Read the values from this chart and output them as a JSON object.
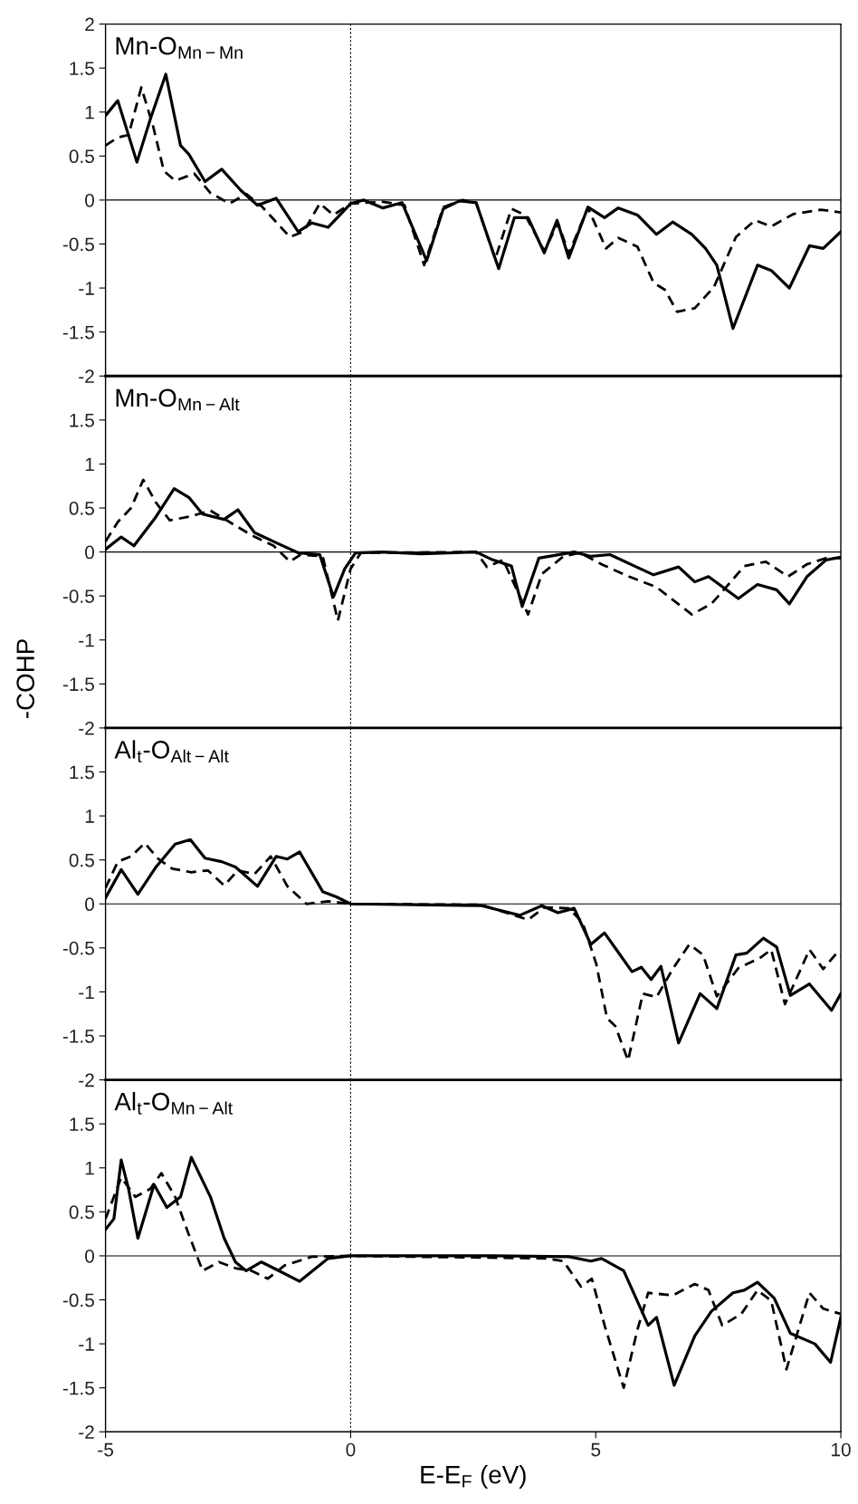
{
  "chart_data": [
    {
      "type": "line",
      "annotations": [
        "Mn-O$_{Mn−Mn}$"
      ],
      "xlim": [
        -5,
        10
      ],
      "ylim": [
        -2,
        2
      ],
      "yticks": [
        -2,
        -1.5,
        -1,
        -0.5,
        0,
        0.5,
        1,
        1.5,
        2
      ],
      "tick_labels": "y",
      "grid": false,
      "legend": false,
      "ref_lines": [
        {
          "axis": "x",
          "value": 0,
          "color": "#000000",
          "line_style": "dotted"
        },
        {
          "axis": "y",
          "value": 0,
          "color": "#000000",
          "line_style": "solid"
        }
      ],
      "series": [
        {
          "color": "#000000",
          "line_style": "solid",
          "x": [
            -5,
            -4.75,
            -4.36,
            -4.08,
            -3.77,
            -3.47,
            -3.3,
            -2.97,
            -2.63,
            -2.24,
            -1.9,
            -1.52,
            -1.07,
            -0.79,
            -0.46,
            0,
            0.27,
            0.66,
            1.05,
            1.55,
            1.89,
            2.22,
            2.56,
            3.02,
            3.34,
            3.62,
            3.95,
            4.21,
            4.45,
            4.84,
            5.18,
            5.46,
            5.85,
            6.24,
            6.57,
            6.96,
            7.24,
            7.47,
            7.8,
            8.3,
            8.58,
            8.95,
            9.36,
            9.64,
            10
          ],
          "values": [
            0.96,
            1.13,
            0.43,
            0.93,
            1.43,
            0.62,
            0.52,
            0.21,
            0.35,
            0.11,
            -0.06,
            0.02,
            -0.36,
            -0.26,
            -0.31,
            -0.04,
            0,
            -0.09,
            -0.03,
            -0.69,
            -0.1,
            -0.01,
            -0.03,
            -0.78,
            -0.2,
            -0.2,
            -0.6,
            -0.23,
            -0.66,
            -0.08,
            -0.2,
            -0.09,
            -0.17,
            -0.39,
            -0.25,
            -0.39,
            -0.55,
            -0.74,
            -1.46,
            -0.74,
            -0.8,
            -1.0,
            -0.52,
            -0.55,
            -0.36
          ]
        },
        {
          "color": "#000000",
          "line_style": "dashed",
          "x": [
            -5,
            -4.75,
            -4.53,
            -4.27,
            -4.03,
            -3.81,
            -3.58,
            -3.19,
            -2.86,
            -2.47,
            -2.13,
            -1.8,
            -1.24,
            -0.96,
            -0.63,
            -0.35,
            0,
            0.66,
            1.1,
            1.5,
            1.89,
            2.28,
            2.56,
            2.95,
            3.28,
            3.56,
            3.95,
            4.23,
            4.45,
            4.84,
            5.01,
            5.21,
            5.46,
            5.85,
            6.18,
            6.41,
            6.66,
            7.02,
            7.41,
            7.86,
            8.25,
            8.58,
            9.03,
            9.59,
            10
          ],
          "values": [
            0.62,
            0.71,
            0.74,
            1.28,
            0.84,
            0.33,
            0.22,
            0.3,
            0.08,
            -0.04,
            0.07,
            -0.08,
            -0.42,
            -0.36,
            -0.04,
            -0.17,
            -0.04,
            -0.02,
            -0.06,
            -0.74,
            -0.08,
            0,
            -0.03,
            -0.67,
            -0.1,
            -0.17,
            -0.58,
            -0.26,
            -0.61,
            -0.09,
            -0.3,
            -0.55,
            -0.43,
            -0.53,
            -0.94,
            -1.02,
            -1.27,
            -1.23,
            -0.99,
            -0.42,
            -0.23,
            -0.3,
            -0.16,
            -0.11,
            -0.14
          ]
        }
      ]
    },
    {
      "type": "line",
      "ylabel": "-COHP",
      "annotations": [
        "Mn-O$_{Mn−Alt}$"
      ],
      "xlim": [
        -5,
        10
      ],
      "ylim": [
        -2,
        2
      ],
      "yticks": [
        -2,
        -1.5,
        -1,
        -0.5,
        0,
        0.5,
        1,
        1.5
      ],
      "tick_labels": "y",
      "grid": false,
      "legend": false,
      "ref_lines": [
        {
          "axis": "x",
          "value": 0,
          "color": "#000000",
          "line_style": "dotted"
        },
        {
          "axis": "y",
          "value": 0,
          "color": "#000000",
          "line_style": "solid"
        }
      ],
      "series": [
        {
          "color": "#000000",
          "line_style": "solid",
          "x": [
            -5,
            -4.68,
            -4.42,
            -3.97,
            -3.6,
            -3.3,
            -3.02,
            -2.58,
            -2.3,
            -1.96,
            -1.46,
            -1.07,
            -0.63,
            -0.35,
            -0.12,
            0.1,
            0.66,
            1.44,
            2.56,
            2.9,
            3.28,
            3.5,
            3.84,
            4.56,
            4.9,
            5.29,
            5.79,
            6.18,
            6.69,
            7.02,
            7.3,
            7.91,
            8.3,
            8.69,
            8.95,
            9.31,
            9.7,
            10
          ],
          "values": [
            0.03,
            0.17,
            0.07,
            0.4,
            0.72,
            0.62,
            0.43,
            0.37,
            0.48,
            0.22,
            0.09,
            -0.01,
            -0.03,
            -0.51,
            -0.19,
            -0.01,
            0,
            -0.02,
            0,
            -0.09,
            -0.16,
            -0.62,
            -0.07,
            0,
            -0.05,
            -0.03,
            -0.16,
            -0.26,
            -0.17,
            -0.34,
            -0.28,
            -0.53,
            -0.37,
            -0.43,
            -0.59,
            -0.28,
            -0.09,
            -0.06
          ]
        },
        {
          "color": "#000000",
          "line_style": "dashed",
          "x": [
            -5,
            -4.75,
            -4.48,
            -4.23,
            -3.97,
            -3.69,
            -3.3,
            -2.86,
            -2.47,
            -2.02,
            -1.57,
            -1.24,
            -1.02,
            -0.57,
            -0.26,
            0,
            0.21,
            2.56,
            2.78,
            3.11,
            3.62,
            3.9,
            4.34,
            4.68,
            5.12,
            5.68,
            6.24,
            6.96,
            7.36,
            7.8,
            8.03,
            8.47,
            8.92,
            9.31,
            9.7,
            10
          ],
          "values": [
            0.12,
            0.34,
            0.5,
            0.82,
            0.56,
            0.36,
            0.4,
            0.47,
            0.34,
            0.19,
            0.07,
            -0.11,
            -0.03,
            -0.05,
            -0.78,
            -0.19,
            -0.01,
            0,
            -0.17,
            -0.09,
            -0.71,
            -0.25,
            -0.05,
            -0.01,
            -0.14,
            -0.28,
            -0.4,
            -0.71,
            -0.59,
            -0.31,
            -0.16,
            -0.11,
            -0.28,
            -0.14,
            -0.07,
            -0.07
          ]
        }
      ]
    },
    {
      "type": "line",
      "annotations": [
        "Al$_{t}$-O$_{Alt−Alt}$"
      ],
      "xlim": [
        -5,
        10
      ],
      "ylim": [
        -2,
        2
      ],
      "yticks": [
        -2,
        -1.5,
        -1,
        -0.5,
        0,
        0.5,
        1,
        1.5
      ],
      "tick_labels": "y",
      "grid": false,
      "legend": false,
      "ref_lines": [
        {
          "axis": "x",
          "value": 0,
          "color": "#000000",
          "line_style": "dotted"
        },
        {
          "axis": "y",
          "value": 0,
          "color": "#000000",
          "line_style": "solid"
        }
      ],
      "series": [
        {
          "color": "#000000",
          "line_style": "solid",
          "x": [
            -5,
            -4.68,
            -4.34,
            -3.97,
            -3.58,
            -3.27,
            -2.97,
            -2.63,
            -2.35,
            -1.9,
            -1.52,
            -1.29,
            -1.04,
            -0.57,
            -0.29,
            0,
            2.67,
            3.45,
            3.9,
            4.23,
            4.56,
            4.9,
            5.18,
            5.46,
            5.74,
            5.93,
            6.13,
            6.33,
            6.69,
            7.13,
            7.47,
            7.86,
            8.08,
            8.42,
            8.69,
            8.97,
            9.36,
            9.81,
            10
          ],
          "values": [
            0.07,
            0.39,
            0.11,
            0.42,
            0.68,
            0.73,
            0.52,
            0.48,
            0.42,
            0.2,
            0.54,
            0.51,
            0.59,
            0.14,
            0.08,
            0,
            -0.02,
            -0.13,
            -0.02,
            -0.1,
            -0.05,
            -0.46,
            -0.33,
            -0.55,
            -0.77,
            -0.72,
            -0.86,
            -0.71,
            -1.58,
            -1.02,
            -1.19,
            -0.58,
            -0.56,
            -0.39,
            -0.49,
            -1.04,
            -0.91,
            -1.21,
            -1.02
          ]
        },
        {
          "color": "#000000",
          "line_style": "dashed",
          "x": [
            -5,
            -4.75,
            -4.48,
            -4.2,
            -3.92,
            -3.64,
            -3.25,
            -2.91,
            -2.58,
            -2.3,
            -1.96,
            -1.63,
            -1.29,
            -0.9,
            -0.46,
            0,
            2.67,
            3.62,
            3.95,
            4.45,
            4.73,
            5.01,
            5.23,
            5.4,
            5.66,
            5.96,
            6.24,
            6.57,
            6.91,
            7.19,
            7.47,
            7.91,
            8.36,
            8.58,
            8.86,
            9.36,
            9.64,
            9.93,
            10
          ],
          "values": [
            0.18,
            0.48,
            0.54,
            0.69,
            0.51,
            0.4,
            0.36,
            0.38,
            0.21,
            0.38,
            0.34,
            0.54,
            0.2,
            0,
            0.03,
            0,
            -0.01,
            -0.18,
            -0.04,
            -0.05,
            -0.21,
            -0.68,
            -1.3,
            -1.39,
            -1.78,
            -1.02,
            -1.06,
            -0.74,
            -0.46,
            -0.58,
            -1.05,
            -0.73,
            -0.61,
            -0.52,
            -1.14,
            -0.52,
            -0.74,
            -0.55,
            -0.58
          ]
        }
      ]
    },
    {
      "type": "line",
      "annotations": [
        "Al$_{t}$-O$_{Mn−Alt}$"
      ],
      "xlabel": "E-E$_{F}$ (eV)",
      "xlim": [
        -5,
        10
      ],
      "xticks": [
        -5,
        0,
        5,
        10
      ],
      "ylim": [
        -2,
        2
      ],
      "yticks": [
        -2,
        -1.5,
        -1,
        -0.5,
        0,
        0.5,
        1,
        1.5
      ],
      "grid": false,
      "legend": false,
      "ref_lines": [
        {
          "axis": "x",
          "value": 0,
          "color": "#000000",
          "line_style": "dotted"
        },
        {
          "axis": "y",
          "value": 0,
          "color": "#000000",
          "line_style": "solid"
        }
      ],
      "series": [
        {
          "color": "#000000",
          "line_style": "solid",
          "x": [
            -5,
            -4.83,
            -4.68,
            -4.53,
            -4.34,
            -4.01,
            -3.75,
            -3.47,
            -3.25,
            -2.86,
            -2.58,
            -2.35,
            -2.13,
            -1.82,
            -1.46,
            -1.04,
            -0.46,
            0,
            2.89,
            4.45,
            4.9,
            5.12,
            5.57,
            6.07,
            6.24,
            6.6,
            7.02,
            7.36,
            7.8,
            8.03,
            8.3,
            8.64,
            8.97,
            9.47,
            9.79,
            10
          ],
          "values": [
            0.3,
            0.42,
            1.09,
            0.76,
            0.2,
            0.81,
            0.55,
            0.67,
            1.12,
            0.67,
            0.2,
            -0.07,
            -0.17,
            -0.07,
            -0.17,
            -0.29,
            -0.03,
            0,
            0,
            -0.01,
            -0.06,
            -0.03,
            -0.17,
            -0.79,
            -0.7,
            -1.47,
            -0.91,
            -0.63,
            -0.42,
            -0.39,
            -0.3,
            -0.48,
            -0.88,
            -1.0,
            -1.21,
            -0.7
          ]
        },
        {
          "color": "#000000",
          "line_style": "dashed",
          "x": [
            -5,
            -4.68,
            -4.39,
            -4.09,
            -3.86,
            -3.58,
            -3.3,
            -3.02,
            -2.69,
            -2.35,
            -2.02,
            -1.69,
            -1.35,
            -0.79,
            0,
            4.0,
            4.34,
            4.7,
            4.92,
            5.18,
            5.57,
            5.85,
            6.07,
            6.57,
            7.02,
            7.3,
            7.58,
            7.97,
            8.3,
            8.58,
            8.89,
            9.36,
            9.64,
            10
          ],
          "values": [
            0.42,
            0.89,
            0.67,
            0.76,
            0.94,
            0.67,
            0.24,
            -0.17,
            -0.07,
            -0.14,
            -0.17,
            -0.26,
            -0.11,
            -0.01,
            0,
            -0.03,
            -0.06,
            -0.35,
            -0.26,
            -0.79,
            -1.5,
            -0.84,
            -0.42,
            -0.45,
            -0.32,
            -0.39,
            -0.79,
            -0.66,
            -0.39,
            -0.51,
            -1.29,
            -0.42,
            -0.6,
            -0.66
          ]
        }
      ]
    }
  ]
}
